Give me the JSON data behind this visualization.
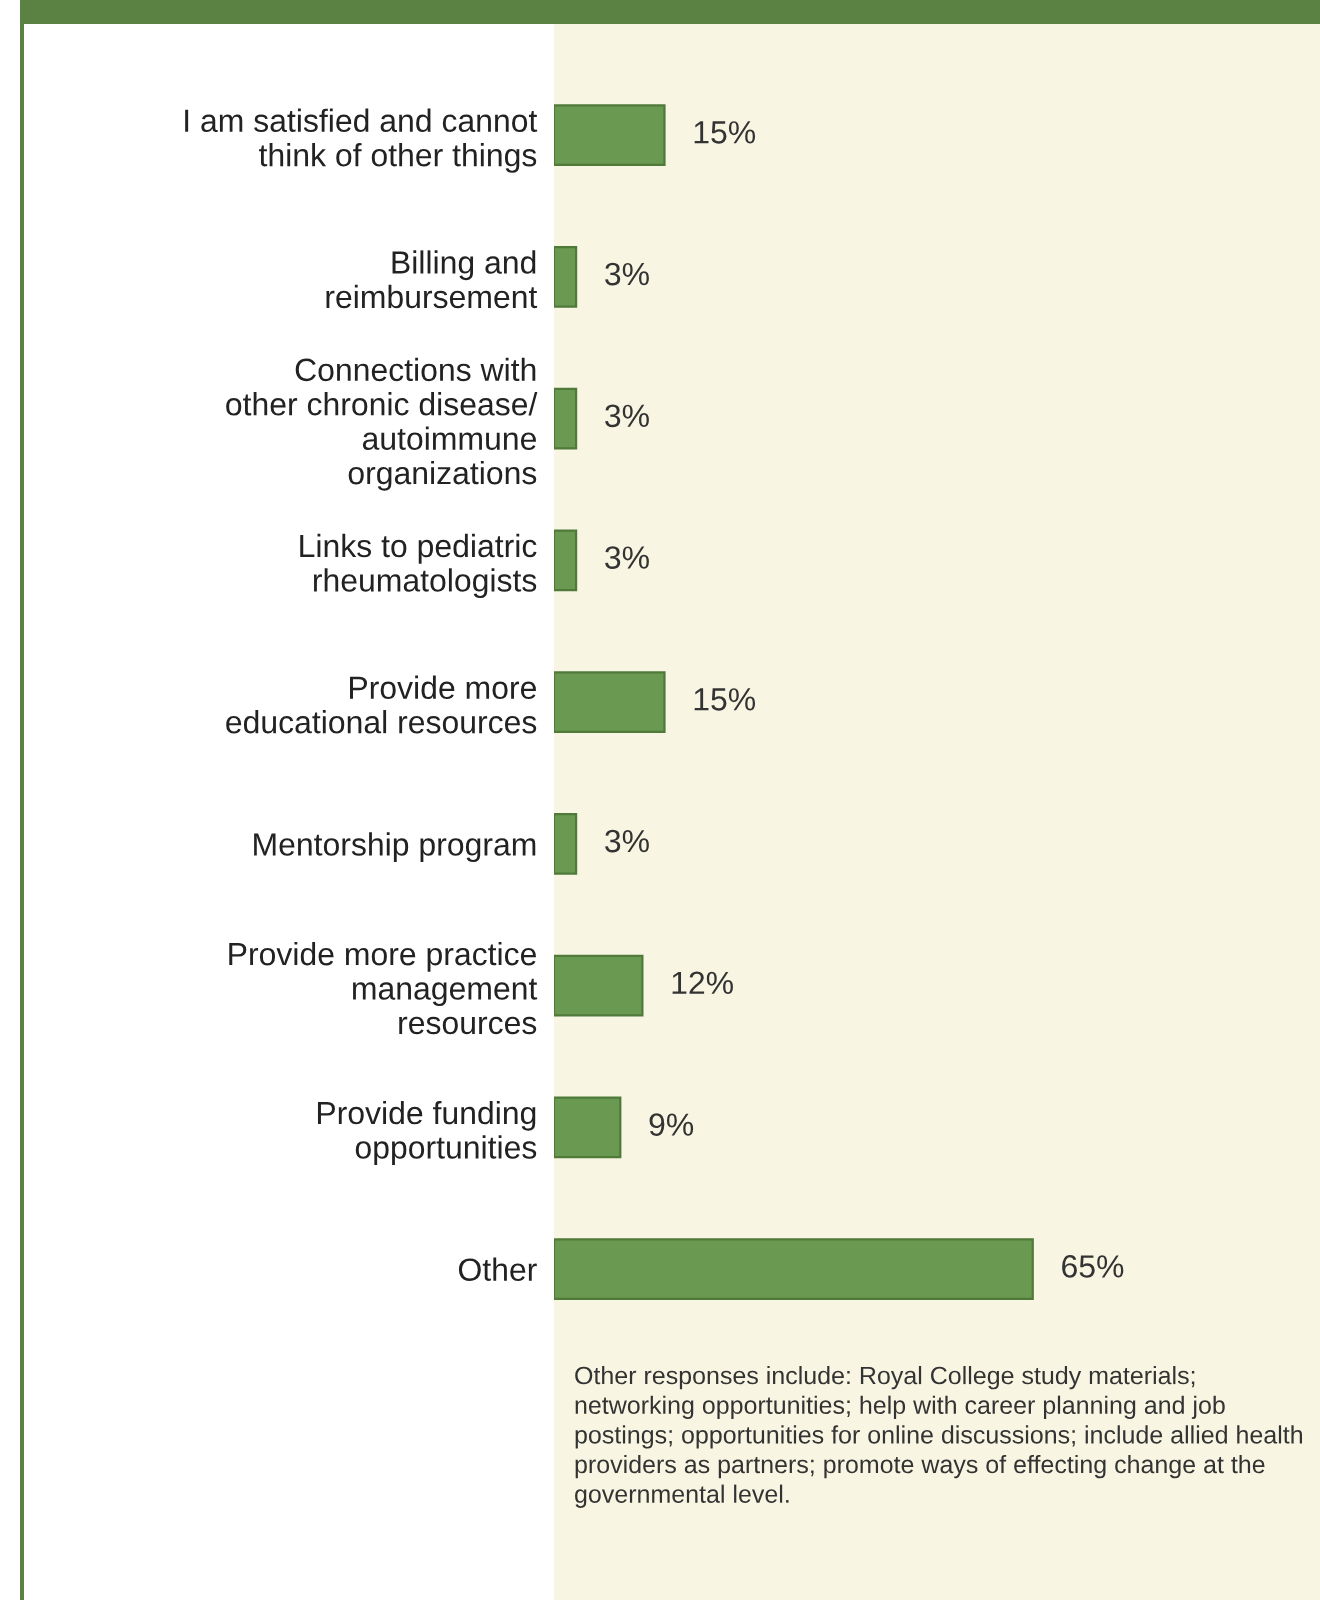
{
  "chart_data": {
    "type": "bar",
    "orientation": "horizontal",
    "categories": [
      "I am satisfied and cannot\nthink of other things",
      "Billing and\nreimbursement",
      "Connections with\nother chronic disease/\nautoimmune\norganizations",
      "Links to pediatric\nrheumatologists",
      "Provide more\neducational resources",
      "Mentorship program",
      "Provide more practice\nmanagement\nresources",
      "Provide funding\nopportunities",
      "Other"
    ],
    "values": [
      15,
      3,
      3,
      3,
      15,
      3,
      12,
      9,
      65
    ],
    "value_labels": [
      "15%",
      "3%",
      "3%",
      "3%",
      "15%",
      "3%",
      "12%",
      "9%",
      "65%"
    ],
    "color": "#6a9a52",
    "tick_labels": "y",
    "grid": false,
    "legend": false,
    "annotations": [
      "Other responses include: Royal College study materials; networking opportunities; help with career planning and job postings; opportunities for online discussions; include allied health providers as partners; promote ways of effecting change at the governmental level."
    ]
  }
}
